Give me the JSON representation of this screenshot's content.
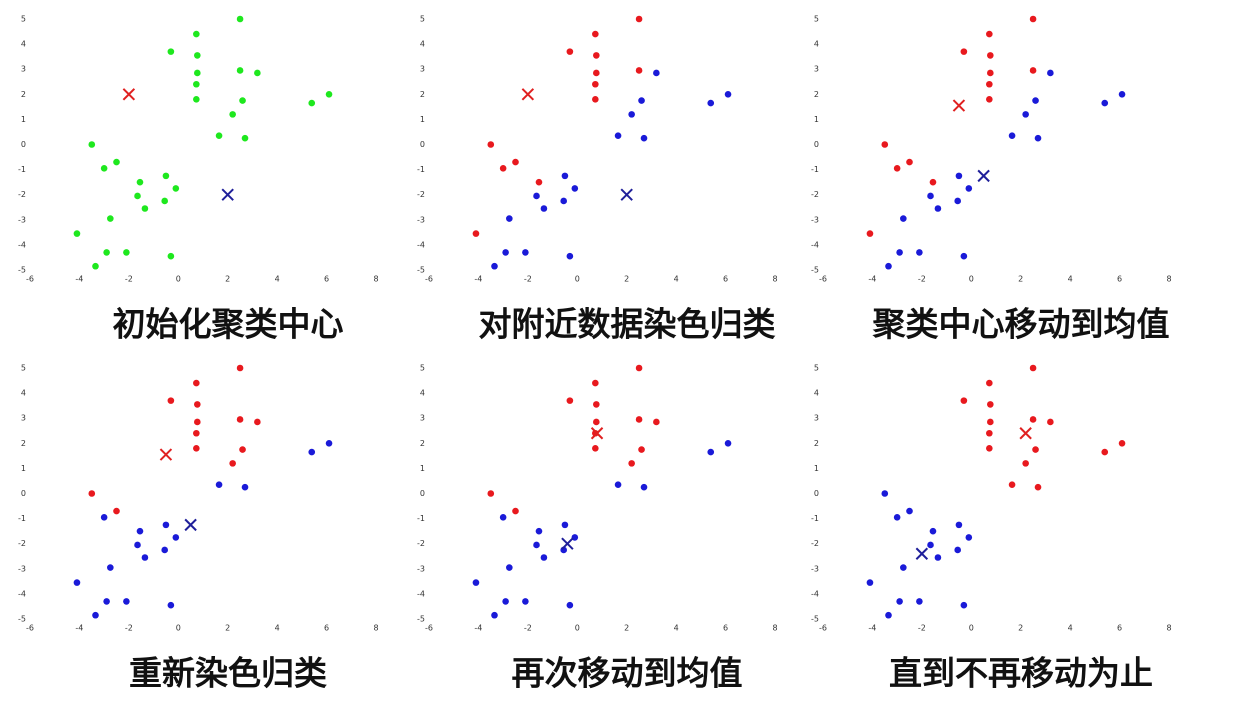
{
  "chart_data": [
    {
      "type": "scatter",
      "title": "初始化聚类中心",
      "xlim": [
        -6,
        8
      ],
      "ylim": [
        -5,
        5
      ],
      "xticks": [
        -6,
        -4,
        -2,
        0,
        2,
        4,
        6,
        8
      ],
      "yticks": [
        -5,
        -4,
        -3,
        -2,
        -1,
        0,
        1,
        2,
        3,
        4,
        5
      ],
      "series": [
        {
          "color": "#1ee81e",
          "x": [
            0.73,
            2.5,
            -0.3,
            0.77,
            0.77,
            2.5,
            3.2,
            0.73,
            0.73,
            2.6,
            5.4,
            6.1,
            2.2,
            1.65,
            2.7,
            -3.5,
            -3,
            -2.5,
            -1.55,
            -0.5,
            -0.1,
            -1.65,
            -1.35,
            -0.55,
            -2.75,
            -4.1,
            -2.9,
            -2.1,
            -0.3,
            -3.35
          ],
          "y": [
            4.4,
            5,
            3.7,
            3.55,
            2.85,
            2.95,
            2.85,
            2.4,
            1.8,
            1.75,
            1.65,
            2,
            1.2,
            0.35,
            0.25,
            0,
            -0.95,
            -0.7,
            -1.5,
            -1.25,
            -1.75,
            -2.05,
            -2.55,
            -2.25,
            -2.95,
            -3.55,
            -4.3,
            -4.3,
            -4.45,
            -4.85
          ]
        }
      ],
      "centroids": {
        "x": [
          -2,
          2
        ],
        "y": [
          2,
          -2
        ],
        "colors": [
          "#e02020",
          "#1f1f9a"
        ]
      }
    },
    {
      "type": "scatter",
      "title": "对附近数据染色归类",
      "xlim": [
        -6,
        8
      ],
      "ylim": [
        -5,
        5
      ],
      "xticks": [
        -6,
        -4,
        -2,
        0,
        2,
        4,
        6,
        8
      ],
      "yticks": [
        -5,
        -4,
        -3,
        -2,
        -1,
        0,
        1,
        2,
        3,
        4,
        5
      ],
      "series": [
        {
          "color": "#e8191e",
          "x": [
            0.73,
            2.5,
            -0.3,
            0.77,
            0.77,
            2.5,
            0.73,
            0.73,
            -3.5,
            -3,
            -2.5,
            -1.55,
            -4.1
          ],
          "y": [
            4.4,
            5,
            3.7,
            3.55,
            2.85,
            2.95,
            2.4,
            1.8,
            0,
            -0.95,
            -0.7,
            -1.5,
            -3.55
          ]
        },
        {
          "color": "#1a1ad8",
          "x": [
            3.2,
            2.6,
            5.4,
            6.1,
            2.2,
            1.65,
            2.7,
            -0.5,
            -0.1,
            -1.65,
            -1.35,
            -0.55,
            -2.75,
            -2.9,
            -2.1,
            -0.3,
            -3.35
          ],
          "y": [
            2.85,
            1.75,
            1.65,
            2,
            1.2,
            0.35,
            0.25,
            -1.25,
            -1.75,
            -2.05,
            -2.55,
            -2.25,
            -2.95,
            -4.3,
            -4.3,
            -4.45,
            -4.85
          ]
        }
      ],
      "centroids": {
        "x": [
          -2,
          2
        ],
        "y": [
          2,
          -2
        ],
        "colors": [
          "#e02020",
          "#1f1f9a"
        ]
      }
    },
    {
      "type": "scatter",
      "title": "聚类中心移动到均值",
      "xlim": [
        -6,
        8
      ],
      "ylim": [
        -5,
        5
      ],
      "xticks": [
        -6,
        -4,
        -2,
        0,
        2,
        4,
        6,
        8
      ],
      "yticks": [
        -5,
        -4,
        -3,
        -2,
        -1,
        0,
        1,
        2,
        3,
        4,
        5
      ],
      "series": [
        {
          "color": "#e8191e",
          "x": [
            0.73,
            2.5,
            -0.3,
            0.77,
            0.77,
            2.5,
            0.73,
            0.73,
            -3.5,
            -3,
            -2.5,
            -1.55,
            -4.1
          ],
          "y": [
            4.4,
            5,
            3.7,
            3.55,
            2.85,
            2.95,
            2.4,
            1.8,
            0,
            -0.95,
            -0.7,
            -1.5,
            -3.55
          ]
        },
        {
          "color": "#1a1ad8",
          "x": [
            3.2,
            2.6,
            5.4,
            6.1,
            2.2,
            1.65,
            2.7,
            -0.5,
            -0.1,
            -1.65,
            -1.35,
            -0.55,
            -2.75,
            -2.9,
            -2.1,
            -0.3,
            -3.35
          ],
          "y": [
            2.85,
            1.75,
            1.65,
            2,
            1.2,
            0.35,
            0.25,
            -1.25,
            -1.75,
            -2.05,
            -2.55,
            -2.25,
            -2.95,
            -4.3,
            -4.3,
            -4.45,
            -4.85
          ]
        }
      ],
      "centroids": {
        "x": [
          -0.5,
          0.5
        ],
        "y": [
          1.55,
          -1.25
        ],
        "colors": [
          "#e02020",
          "#1f1f9a"
        ]
      }
    },
    {
      "type": "scatter",
      "title": "重新染色归类",
      "xlim": [
        -6,
        8
      ],
      "ylim": [
        -5,
        5
      ],
      "xticks": [
        -6,
        -4,
        -2,
        0,
        2,
        4,
        6,
        8
      ],
      "yticks": [
        -5,
        -4,
        -3,
        -2,
        -1,
        0,
        1,
        2,
        3,
        4,
        5
      ],
      "series": [
        {
          "color": "#e8191e",
          "x": [
            0.73,
            2.5,
            -0.3,
            0.77,
            0.77,
            2.5,
            3.2,
            0.73,
            0.73,
            2.6,
            2.2,
            -3.5,
            -2.5
          ],
          "y": [
            4.4,
            5,
            3.7,
            3.55,
            2.85,
            2.95,
            2.85,
            2.4,
            1.8,
            1.75,
            1.2,
            0,
            -0.7
          ]
        },
        {
          "color": "#1a1ad8",
          "x": [
            5.4,
            6.1,
            1.65,
            2.7,
            -3,
            -1.55,
            -0.5,
            -0.1,
            -1.65,
            -1.35,
            -0.55,
            -2.75,
            -4.1,
            -2.9,
            -2.1,
            -0.3,
            -3.35
          ],
          "y": [
            1.65,
            2,
            0.35,
            0.25,
            -0.95,
            -1.5,
            -1.25,
            -1.75,
            -2.05,
            -2.55,
            -2.25,
            -2.95,
            -3.55,
            -4.3,
            -4.3,
            -4.45,
            -4.85
          ]
        }
      ],
      "centroids": {
        "x": [
          -0.5,
          0.5
        ],
        "y": [
          1.55,
          -1.25
        ],
        "colors": [
          "#e02020",
          "#1f1f9a"
        ]
      }
    },
    {
      "type": "scatter",
      "title": "再次移动到均值",
      "xlim": [
        -6,
        8
      ],
      "ylim": [
        -5,
        5
      ],
      "xticks": [
        -6,
        -4,
        -2,
        0,
        2,
        4,
        6,
        8
      ],
      "yticks": [
        -5,
        -4,
        -3,
        -2,
        -1,
        0,
        1,
        2,
        3,
        4,
        5
      ],
      "series": [
        {
          "color": "#e8191e",
          "x": [
            0.73,
            2.5,
            -0.3,
            0.77,
            0.77,
            2.5,
            3.2,
            0.73,
            0.73,
            2.6,
            2.2,
            -3.5,
            -2.5
          ],
          "y": [
            4.4,
            5,
            3.7,
            3.55,
            2.85,
            2.95,
            2.85,
            2.4,
            1.8,
            1.75,
            1.2,
            0,
            -0.7
          ]
        },
        {
          "color": "#1a1ad8",
          "x": [
            5.4,
            6.1,
            1.65,
            2.7,
            -3,
            -1.55,
            -0.5,
            -0.1,
            -1.65,
            -1.35,
            -0.55,
            -2.75,
            -4.1,
            -2.9,
            -2.1,
            -0.3,
            -3.35
          ],
          "y": [
            1.65,
            2,
            0.35,
            0.25,
            -0.95,
            -1.5,
            -1.25,
            -1.75,
            -2.05,
            -2.55,
            -2.25,
            -2.95,
            -3.55,
            -4.3,
            -4.3,
            -4.45,
            -4.85
          ]
        }
      ],
      "centroids": {
        "x": [
          0.8,
          -0.4
        ],
        "y": [
          2.4,
          -2.0
        ],
        "colors": [
          "#e02020",
          "#1f1f9a"
        ]
      }
    },
    {
      "type": "scatter",
      "title": "直到不再移动为止",
      "xlim": [
        -6,
        8
      ],
      "ylim": [
        -5,
        5
      ],
      "xticks": [
        -6,
        -4,
        -2,
        0,
        2,
        4,
        6,
        8
      ],
      "yticks": [
        -5,
        -4,
        -3,
        -2,
        -1,
        0,
        1,
        2,
        3,
        4,
        5
      ],
      "series": [
        {
          "color": "#e8191e",
          "x": [
            0.73,
            2.5,
            -0.3,
            0.77,
            0.77,
            2.5,
            3.2,
            0.73,
            0.73,
            2.6,
            5.4,
            6.1,
            2.2,
            1.65,
            2.7
          ],
          "y": [
            4.4,
            5,
            3.7,
            3.55,
            2.85,
            2.95,
            2.85,
            2.4,
            1.8,
            1.75,
            1.65,
            2,
            1.2,
            0.35,
            0.25
          ]
        },
        {
          "color": "#1a1ad8",
          "x": [
            -3.5,
            -3,
            -2.5,
            -1.55,
            -0.5,
            -0.1,
            -1.65,
            -1.35,
            -0.55,
            -2.75,
            -4.1,
            -2.9,
            -2.1,
            -0.3,
            -3.35
          ],
          "y": [
            0,
            -0.95,
            -0.7,
            -1.5,
            -1.25,
            -1.75,
            -2.05,
            -2.55,
            -2.25,
            -2.95,
            -3.55,
            -4.3,
            -4.3,
            -4.45,
            -4.85
          ]
        }
      ],
      "centroids": {
        "x": [
          2.2,
          -2
        ],
        "y": [
          2.4,
          -2.4
        ],
        "colors": [
          "#e02020",
          "#1f1f9a"
        ]
      }
    }
  ]
}
